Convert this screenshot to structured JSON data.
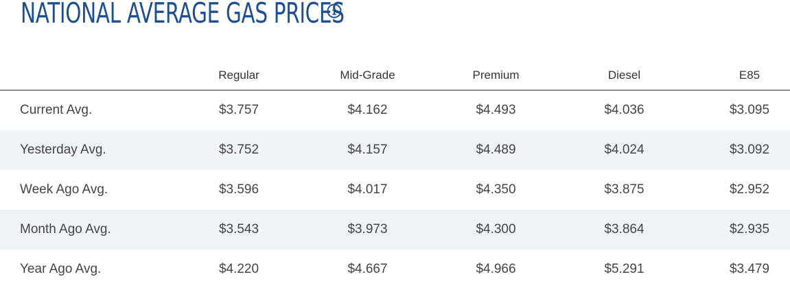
{
  "header": {
    "title": "NATIONAL AVERAGE GAS PRICES",
    "info_icon": "info-circle-icon",
    "accent_color": "#1d4f91"
  },
  "table": {
    "columns": [
      "",
      "Regular",
      "Mid-Grade",
      "Premium",
      "Diesel",
      "E85"
    ],
    "rows": [
      {
        "label": "Current Avg.",
        "values": [
          "$3.757",
          "$4.162",
          "$4.493",
          "$4.036",
          "$3.095"
        ]
      },
      {
        "label": "Yesterday Avg.",
        "values": [
          "$3.752",
          "$4.157",
          "$4.489",
          "$4.024",
          "$3.092"
        ]
      },
      {
        "label": "Week Ago Avg.",
        "values": [
          "$3.596",
          "$4.017",
          "$4.350",
          "$3.875",
          "$2.952"
        ]
      },
      {
        "label": "Month Ago Avg.",
        "values": [
          "$3.543",
          "$3.973",
          "$4.300",
          "$3.864",
          "$2.935"
        ]
      },
      {
        "label": "Year Ago Avg.",
        "values": [
          "$4.220",
          "$4.667",
          "$4.966",
          "$5.291",
          "$3.479"
        ]
      }
    ],
    "stripe_color": "#eef3f8"
  }
}
